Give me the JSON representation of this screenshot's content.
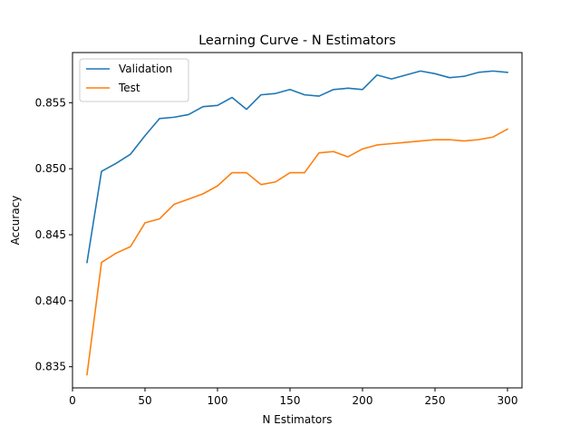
{
  "chart_data": {
    "type": "line",
    "title": "Learning Curve - N Estimators",
    "xlabel": "N Estimators",
    "ylabel": "Accuracy",
    "xlim": [
      0,
      310
    ],
    "ylim": [
      0.8334,
      0.8588
    ],
    "xticks": [
      0,
      50,
      100,
      150,
      200,
      250,
      300
    ],
    "yticks": [
      0.835,
      0.84,
      0.845,
      0.85,
      0.855
    ],
    "ytick_labels": [
      "0.835",
      "0.840",
      "0.845",
      "0.850",
      "0.855"
    ],
    "legend_position": "upper-left",
    "grid": false,
    "x": [
      10,
      20,
      30,
      40,
      50,
      60,
      70,
      80,
      90,
      100,
      110,
      120,
      130,
      140,
      150,
      160,
      170,
      180,
      190,
      200,
      210,
      220,
      230,
      240,
      250,
      260,
      270,
      280,
      290,
      300
    ],
    "series": [
      {
        "name": "Validation",
        "color": "#1f77b4",
        "values": [
          0.8429,
          0.8498,
          0.8504,
          0.8511,
          0.8525,
          0.8538,
          0.8539,
          0.8541,
          0.8547,
          0.8548,
          0.8554,
          0.8545,
          0.8556,
          0.8557,
          0.856,
          0.8556,
          0.8555,
          0.856,
          0.8561,
          0.856,
          0.8571,
          0.8568,
          0.8571,
          0.8574,
          0.8572,
          0.8569,
          0.857,
          0.8573,
          0.8574,
          0.8573
        ]
      },
      {
        "name": "Test",
        "color": "#ff7f0e",
        "values": [
          0.8344,
          0.8429,
          0.8436,
          0.8441,
          0.8459,
          0.8462,
          0.8473,
          0.8477,
          0.8481,
          0.8487,
          0.8497,
          0.8497,
          0.8488,
          0.849,
          0.8497,
          0.8497,
          0.8512,
          0.8513,
          0.8509,
          0.8515,
          0.8518,
          0.8519,
          0.852,
          0.8521,
          0.8522,
          0.8522,
          0.8521,
          0.8522,
          0.8524,
          0.853
        ]
      }
    ]
  }
}
